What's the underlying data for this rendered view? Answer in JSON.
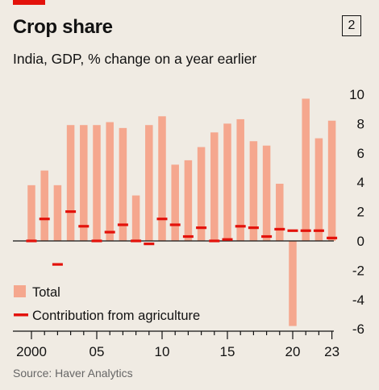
{
  "chart_data": {
    "type": "bar",
    "title": "Crop share",
    "badge": "2",
    "subtitle": "India, GDP, % change on a year earlier",
    "source": "Source: Haver Analytics",
    "x": [
      2000,
      2001,
      2002,
      2003,
      2004,
      2005,
      2006,
      2007,
      2008,
      2009,
      2010,
      2011,
      2012,
      2013,
      2014,
      2015,
      2016,
      2017,
      2018,
      2019,
      2020,
      2021,
      2022,
      2023
    ],
    "x_tick_labels": [
      {
        "year": 2000,
        "label": "2000"
      },
      {
        "year": 2005,
        "label": "05"
      },
      {
        "year": 2010,
        "label": "10"
      },
      {
        "year": 2015,
        "label": "15"
      },
      {
        "year": 2020,
        "label": "20"
      },
      {
        "year": 2023,
        "label": "23"
      }
    ],
    "y_ticks": [
      {
        "value": 10,
        "label": "10"
      },
      {
        "value": 8,
        "label": "8"
      },
      {
        "value": 6,
        "label": "6"
      },
      {
        "value": 4,
        "label": "4"
      },
      {
        "value": 2,
        "label": "2"
      },
      {
        "value": 0,
        "label": "0"
      },
      {
        "value": -2,
        "label": "-2"
      },
      {
        "value": -4,
        "label": "-4"
      },
      {
        "value": -6,
        "label": "-6"
      }
    ],
    "ylim": [
      -6,
      10
    ],
    "y_axis_position": "right",
    "grid": false,
    "legend_position": "bottom-left",
    "series": [
      {
        "name": "Total",
        "kind": "bar",
        "color": "#f5a78e",
        "values": [
          3.8,
          4.8,
          3.8,
          7.9,
          7.9,
          7.9,
          8.1,
          7.7,
          3.1,
          7.9,
          8.5,
          5.2,
          5.5,
          6.4,
          7.4,
          8.0,
          8.3,
          6.8,
          6.5,
          3.9,
          -5.8,
          9.7,
          7.0,
          8.2
        ]
      },
      {
        "name": "Contribution from agriculture",
        "kind": "marker",
        "color": "#e3120b",
        "values": [
          0.0,
          1.5,
          -1.6,
          2.0,
          1.0,
          0.0,
          0.6,
          1.1,
          0.0,
          -0.2,
          1.5,
          1.1,
          0.3,
          0.9,
          0.0,
          0.1,
          1.0,
          0.9,
          0.3,
          0.8,
          0.7,
          0.7,
          0.7,
          0.2
        ]
      }
    ],
    "colors": {
      "background": "#f0ebe3",
      "accent": "#e3120b",
      "text": "#121212",
      "source": "#666666"
    }
  }
}
